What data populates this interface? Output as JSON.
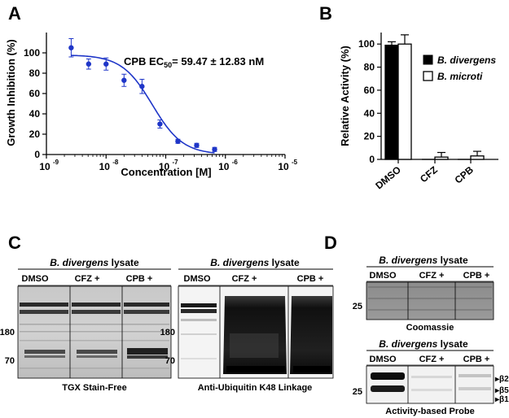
{
  "panels": {
    "A": {
      "letter": "A"
    },
    "B": {
      "letter": "B"
    },
    "C": {
      "letter": "C"
    },
    "D": {
      "letter": "D"
    }
  },
  "chart_data": [
    {
      "type": "scatter",
      "panel": "A",
      "xlabel": "Concentration [M]",
      "ylabel": "Growth Inhibition (%)",
      "xscale": "log",
      "xlim": [
        1e-09,
        1e-05
      ],
      "ylim": [
        0,
        120
      ],
      "xticks": [
        "10",
        "10",
        "10",
        "10",
        "10"
      ],
      "xtick_exp": [
        "-9",
        "-8",
        "-7",
        "-6",
        "-5"
      ],
      "xtick_vals": [
        1e-09,
        1e-08,
        1e-07,
        1e-06,
        1e-05
      ],
      "yticks": [
        "0",
        "20",
        "40",
        "60",
        "80",
        "100"
      ],
      "ytick_vals": [
        0,
        20,
        40,
        60,
        80,
        100
      ],
      "annotation_main": "CPB EC",
      "annotation_sub": "50",
      "annotation_rest": "= 59.47 ± 12.83 nM",
      "color": "#1f36c8",
      "points": [
        {
          "x": 2.6e-09,
          "y": 105,
          "err": 9
        },
        {
          "x": 5.1e-09,
          "y": 89,
          "err": 5
        },
        {
          "x": 1e-08,
          "y": 89,
          "err": 6
        },
        {
          "x": 2e-08,
          "y": 73,
          "err": 6
        },
        {
          "x": 4e-08,
          "y": 67,
          "err": 7
        },
        {
          "x": 8e-08,
          "y": 30,
          "err": 4
        },
        {
          "x": 1.6e-07,
          "y": 13,
          "err": 2
        },
        {
          "x": 3.3e-07,
          "y": 9,
          "err": 2
        },
        {
          "x": 6.6e-07,
          "y": 5,
          "err": 2
        }
      ],
      "fit": {
        "top": 98,
        "bottom": 0,
        "ec50": 5.947e-08,
        "hill": 1.7,
        "x_from": 2.6e-09,
        "x_to": 6.6e-07
      }
    },
    {
      "type": "bar",
      "panel": "B",
      "ylabel": "Relative Activity (%)",
      "ylim": [
        0,
        110
      ],
      "yticks": [
        "0",
        "20",
        "40",
        "60",
        "80",
        "100"
      ],
      "ytick_vals": [
        0,
        20,
        40,
        60,
        80,
        100
      ],
      "categories": [
        "DMSO",
        "CFZ",
        "CPB"
      ],
      "series": [
        {
          "name": "B. divergens",
          "values": [
            99,
            0,
            0
          ],
          "err": [
            3,
            0,
            0
          ],
          "fill": "#000000"
        },
        {
          "name": "B. microti",
          "values": [
            100,
            2,
            3
          ],
          "err": [
            8,
            4,
            4
          ],
          "fill": "#ffffff"
        }
      ],
      "legend": "top-right"
    }
  ],
  "gels": {
    "C_left": {
      "title_italic": "B. divergens",
      "title_rest": " lysate",
      "lanes": [
        "DMSO",
        "CFZ +",
        "CPB +"
      ],
      "markers": [
        "180",
        "70"
      ],
      "caption": "TGX Stain-Free"
    },
    "C_right": {
      "title_italic": "B. divergens",
      "title_rest": " lysate",
      "lanes": [
        "DMSO",
        "CFZ +",
        "CPB +"
      ],
      "markers": [
        "180",
        "70"
      ],
      "caption": "Anti-Ubiquitin K48 Linkage"
    },
    "D_top": {
      "title_italic": "B. divergens",
      "title_rest": " lysate",
      "lanes": [
        "DMSO",
        "CFZ +",
        "CPB +"
      ],
      "markers": [
        "25"
      ],
      "caption": "Coomassie"
    },
    "D_bottom": {
      "title_italic": "B. divergens",
      "title_rest": " lysate",
      "lanes": [
        "DMSO",
        "CFZ +",
        "CPB +"
      ],
      "markers": [
        "25"
      ],
      "caption": "Activity-based Probe",
      "subunits": [
        "β2",
        "β5",
        "β1"
      ]
    }
  }
}
